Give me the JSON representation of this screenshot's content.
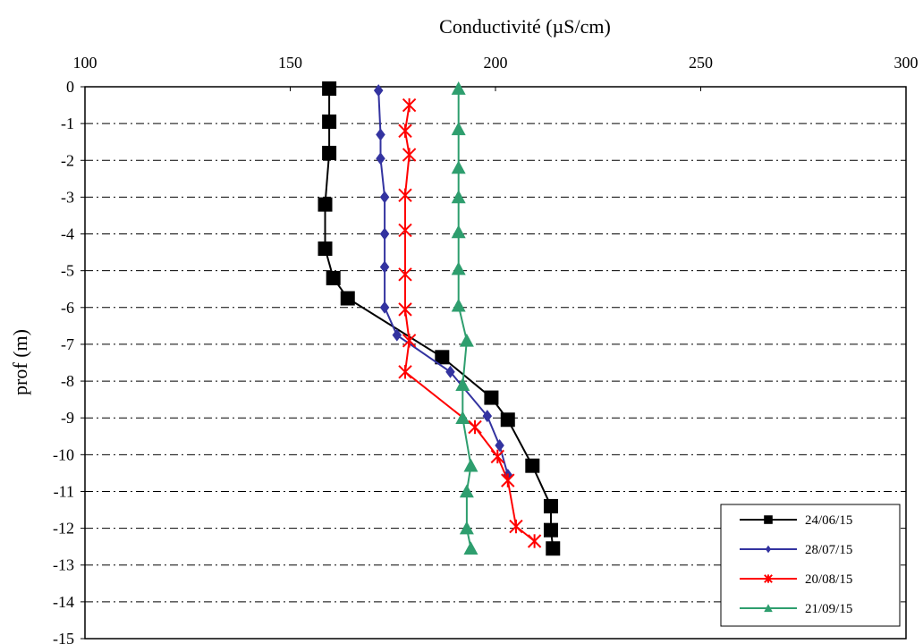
{
  "chart_data": {
    "type": "line",
    "title": "",
    "xlabel": "Conductivité (µS/cm)",
    "ylabel": "prof (m)",
    "x_axis_position": "top",
    "xlim": [
      100,
      300
    ],
    "ylim": [
      -15,
      0
    ],
    "xticks": [
      "100",
      "150",
      "200",
      "250",
      "300"
    ],
    "yticks": [
      "0",
      "-1",
      "-2",
      "-3",
      "-4",
      "-5",
      "-6",
      "-7",
      "-8",
      "-9",
      "-10",
      "-11",
      "-12",
      "-13",
      "-14",
      "-15"
    ],
    "grid": "horizontal dash-dot",
    "legend_position": "bottom-right",
    "series": [
      {
        "name": "24/06/15",
        "color": "#000000",
        "marker": "square",
        "points": [
          [
            159.5,
            -0.05
          ],
          [
            159.5,
            -0.95
          ],
          [
            159.5,
            -1.8
          ],
          [
            158.5,
            -3.2
          ],
          [
            158.5,
            -4.4
          ],
          [
            160.5,
            -5.2
          ],
          [
            164,
            -5.75
          ],
          [
            187,
            -7.35
          ],
          [
            199,
            -8.45
          ],
          [
            203,
            -9.05
          ],
          [
            209,
            -10.3
          ],
          [
            213.5,
            -11.4
          ],
          [
            213.5,
            -12.05
          ],
          [
            214,
            -12.55
          ]
        ]
      },
      {
        "name": "28/07/15",
        "color": "#3333a0",
        "marker": "diamond",
        "points": [
          [
            171.5,
            -0.1
          ],
          [
            172,
            -1.3
          ],
          [
            172,
            -1.95
          ],
          [
            173,
            -3.0
          ],
          [
            173,
            -4.0
          ],
          [
            173,
            -4.9
          ],
          [
            173,
            -6.0
          ],
          [
            176,
            -6.75
          ],
          [
            189,
            -7.75
          ],
          [
            198,
            -8.95
          ],
          [
            201,
            -9.75
          ],
          [
            203,
            -10.55
          ]
        ]
      },
      {
        "name": "20/08/15",
        "color": "#ff0000",
        "marker": "asterisk",
        "points": [
          [
            179,
            -0.5
          ],
          [
            178,
            -1.2
          ],
          [
            179,
            -1.85
          ],
          [
            178,
            -2.95
          ],
          [
            178,
            -3.9
          ],
          [
            178,
            -5.1
          ],
          [
            178,
            -6.05
          ],
          [
            179,
            -6.9
          ],
          [
            178,
            -7.75
          ],
          [
            195,
            -9.25
          ],
          [
            200.5,
            -10.05
          ],
          [
            203,
            -10.7
          ],
          [
            205,
            -11.95
          ],
          [
            209.5,
            -12.35
          ]
        ]
      },
      {
        "name": "21/09/15",
        "color": "#2e9e6e",
        "marker": "triangle",
        "points": [
          [
            191,
            -0.05
          ],
          [
            191,
            -1.15
          ],
          [
            191,
            -2.2
          ],
          [
            191,
            -3.0
          ],
          [
            191,
            -3.95
          ],
          [
            191,
            -4.95
          ],
          [
            191,
            -5.95
          ],
          [
            193,
            -6.9
          ],
          [
            192,
            -8.1
          ],
          [
            192,
            -9.0
          ],
          [
            194,
            -10.3
          ],
          [
            193,
            -11.0
          ],
          [
            193,
            -12.0
          ],
          [
            194,
            -12.55
          ]
        ]
      }
    ]
  }
}
